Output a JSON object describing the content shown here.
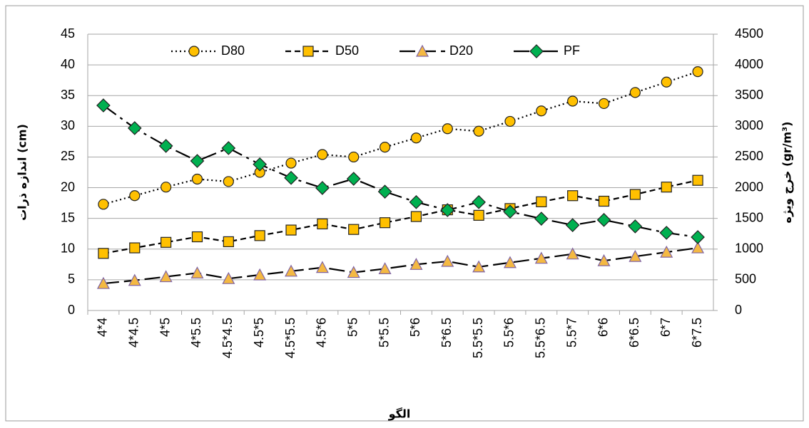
{
  "chart_data": {
    "type": "line",
    "categories": [
      "4*4",
      "4*4.5",
      "4*5",
      "4*5.5",
      "4.5*4.5",
      "4.5*5",
      "4.5*5.5",
      "4.5*6",
      "5*5",
      "5*5.5",
      "5*6",
      "5*6.5",
      "5.5*5.5",
      "5.5*6",
      "5.5*6.5",
      "5.5*7",
      "6*6",
      "6*6.5",
      "6*7",
      "6*7.5"
    ],
    "series": [
      {
        "name": "D80",
        "color": "#FFC000",
        "marker": "circle",
        "dash": "2 4",
        "values": [
          17.3,
          18.7,
          20.1,
          21.4,
          21.0,
          22.5,
          24.0,
          25.4,
          25.0,
          26.6,
          28.1,
          29.6,
          29.2,
          30.8,
          32.5,
          34.1,
          33.7,
          35.5,
          37.2,
          38.9
        ]
      },
      {
        "name": "D50",
        "color": "#FFC000",
        "marker": "square",
        "dash": "8 5",
        "values": [
          9.3,
          10.2,
          11.1,
          12.0,
          11.2,
          12.2,
          13.1,
          14.1,
          13.2,
          14.3,
          15.3,
          16.4,
          15.5,
          16.6,
          17.7,
          18.7,
          17.8,
          18.9,
          20.1,
          21.2
        ]
      },
      {
        "name": "D20",
        "color": "#F4B942",
        "marker": "triangle",
        "dash": "22 7",
        "values": [
          4.4,
          4.9,
          5.5,
          6.1,
          5.2,
          5.8,
          6.4,
          7.0,
          6.2,
          6.8,
          7.5,
          8.0,
          7.1,
          7.8,
          8.5,
          9.2,
          8.1,
          8.8,
          9.5,
          10.2
        ]
      },
      {
        "name": "PF",
        "color": "#00B050",
        "marker": "diamond",
        "dash": "22 7 4 7",
        "axis": "y2",
        "values": [
          3340,
          2970,
          2680,
          2435,
          2645,
          2380,
          2160,
          1995,
          2145,
          1935,
          1765,
          1635,
          1765,
          1610,
          1495,
          1390,
          1475,
          1370,
          1265,
          1195
        ]
      }
    ],
    "xlabel": "الگو",
    "ylabel": "اندازه ذرات (cm)",
    "y2label": "خرج ویژه (gr/m³)",
    "ylim": [
      0,
      45
    ],
    "yticks": [
      0,
      5,
      10,
      15,
      20,
      25,
      30,
      35,
      40,
      45
    ],
    "y2lim": [
      0,
      4500
    ],
    "y2ticks": [
      0,
      500,
      1000,
      1500,
      2000,
      2500,
      3000,
      3500,
      4000,
      4500
    ],
    "grid": true,
    "legend": "top"
  }
}
